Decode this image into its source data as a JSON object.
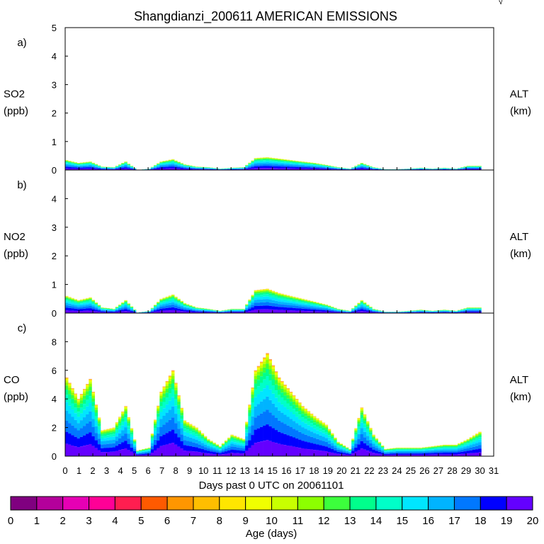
{
  "chart_data": {
    "type": "area",
    "title": "Shangdianzi_200611 AMERICAN EMISSIONS",
    "corner_mark": "√",
    "xlabel": "Days past 0 UTC on 20061101",
    "x_ticks": [
      "0",
      "1",
      "2",
      "3",
      "4",
      "5",
      "6",
      "7",
      "8",
      "9",
      "10",
      "11",
      "12",
      "13",
      "14",
      "15",
      "16",
      "17",
      "18",
      "19",
      "20",
      "21",
      "22",
      "23",
      "24",
      "25",
      "26",
      "27",
      "28",
      "29",
      "30",
      "31"
    ],
    "xlim": [
      0,
      31
    ],
    "panels": [
      {
        "letter": "a)",
        "species": "SO2",
        "unit": "(ppb)",
        "right_label": "ALT",
        "right_unit": "(km)",
        "ylim": [
          0,
          5
        ],
        "y_ticks": [
          "0",
          "1",
          "2",
          "3",
          "4",
          "5"
        ],
        "total_by_day": [
          0.35,
          0.25,
          0.3,
          0.12,
          0.1,
          0.3,
          0.0,
          0.05,
          0.3,
          0.38,
          0.2,
          0.12,
          0.1,
          0.05,
          0.08,
          0.1,
          0.42,
          0.45,
          0.4,
          0.35,
          0.3,
          0.25,
          0.18,
          0.1,
          0.05,
          0.25,
          0.1,
          0.03,
          0.03,
          0.05,
          0.08,
          0.05,
          0.08,
          0.05,
          0.15,
          0.15
        ]
      },
      {
        "letter": "b)",
        "species": "NO2",
        "unit": "(ppb)",
        "right_label": "ALT",
        "right_unit": "(km)",
        "ylim": [
          0,
          5
        ],
        "y_ticks": [
          "0",
          "1",
          "2",
          "3",
          "4"
        ],
        "total_by_day": [
          0.6,
          0.45,
          0.55,
          0.2,
          0.15,
          0.45,
          0.02,
          0.08,
          0.5,
          0.65,
          0.35,
          0.2,
          0.15,
          0.08,
          0.15,
          0.15,
          0.8,
          0.85,
          0.7,
          0.6,
          0.5,
          0.4,
          0.3,
          0.15,
          0.08,
          0.45,
          0.15,
          0.05,
          0.05,
          0.08,
          0.12,
          0.08,
          0.12,
          0.08,
          0.2,
          0.2
        ]
      },
      {
        "letter": "c)",
        "species": "CO",
        "unit": "(ppb)",
        "right_label": "ALT",
        "right_unit": "(km)",
        "ylim": [
          0,
          10
        ],
        "y_ticks": [
          "0",
          "2",
          "4",
          "6",
          "8"
        ],
        "total_by_day": [
          5.5,
          4.0,
          5.4,
          1.8,
          2.0,
          3.5,
          0.4,
          0.6,
          4.5,
          6.0,
          2.5,
          2.0,
          1.2,
          0.7,
          1.5,
          1.2,
          6.0,
          7.2,
          5.5,
          4.5,
          3.5,
          2.8,
          2.2,
          1.0,
          0.5,
          3.4,
          1.5,
          0.5,
          0.6,
          0.6,
          0.6,
          0.7,
          0.8,
          0.8,
          1.2,
          1.7
        ]
      }
    ],
    "colorbar": {
      "label": "Age (days)",
      "ticks": [
        "0",
        "1",
        "2",
        "3",
        "4",
        "5",
        "6",
        "7",
        "8",
        "9",
        "10",
        "11",
        "12",
        "13",
        "14",
        "15",
        "16",
        "17",
        "18",
        "19",
        "20"
      ],
      "colors": [
        "#800080",
        "#b4009b",
        "#e600b4",
        "#ff0096",
        "#ff1e50",
        "#ff5a00",
        "#ff9600",
        "#ffbe00",
        "#ffe600",
        "#f0ff00",
        "#c8ff00",
        "#8cff00",
        "#3cff3c",
        "#00ff8c",
        "#00ffc8",
        "#00e6ff",
        "#00b4ff",
        "#0078ff",
        "#0000ff",
        "#6400ff"
      ]
    }
  }
}
